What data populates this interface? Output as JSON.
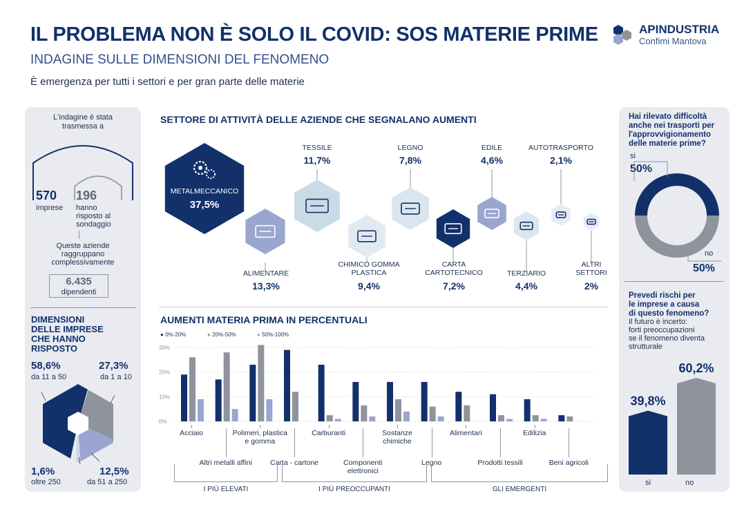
{
  "header": {
    "title": "IL PROBLEMA NON È SOLO IL COVID: SOS MATERIE PRIME",
    "subtitle": "INDAGINE SULLE DIMENSIONI DEL FENOMENO",
    "tagline": "È emergenza per tutti i settori e per gran parte delle materie",
    "logo_name": "APINDUSTRIA",
    "logo_sub": "Confimi Mantova"
  },
  "colors": {
    "navy": "#12316b",
    "grey": "#8f949c",
    "light": "#9aa6cf",
    "pale": "#c9dbe6",
    "panel": "#e9ebf1"
  },
  "left_panel": {
    "intro": [
      "L'indagine è stata",
      "trasmessa a"
    ],
    "sent_number": "570",
    "sent_label": "imprese",
    "resp_number": "196",
    "resp_label": [
      "hanno",
      "risposto al",
      "sondaggio"
    ],
    "group_text": [
      "Queste aziende",
      "raggruppano",
      "complessivamente"
    ],
    "employees_number": "6.435",
    "employees_label": "dipendenti",
    "size_title": [
      "DIMENSIONI",
      "DELLE IMPRESE",
      "CHE HANNO",
      "RISPOSTO"
    ],
    "sizes": [
      {
        "value": "58,6%",
        "label": "da 11 a 50"
      },
      {
        "value": "27,3%",
        "label": "da 1 a 10"
      },
      {
        "value": "12,5%",
        "label": "da 51 a 250"
      },
      {
        "value": "1,6%",
        "label": "oltre 250"
      }
    ]
  },
  "sectors": {
    "title": "SETTORE DI ATTIVITÀ DELLE AZIENDE CHE SEGNALANO AUMENTI",
    "items": [
      {
        "label": "METALMECCANICO",
        "value": "37,5%",
        "icon": "gears-icon"
      },
      {
        "label": "ALIMENTARE",
        "value": "13,3%",
        "icon": "food-icon"
      },
      {
        "label": "TESSILE",
        "value": "11,7%",
        "icon": "fabric-icon"
      },
      {
        "label": "CHIMICO GOMMA",
        "label2": "PLASTICA",
        "value": "9,4%",
        "icon": "chemical-icon"
      },
      {
        "label": "LEGNO",
        "value": "7,8%",
        "icon": "log-icon"
      },
      {
        "label": "CARTA",
        "label2": "CARTOTECNICO",
        "value": "7,2%",
        "icon": "paper-icon"
      },
      {
        "label": "EDILE",
        "value": "4,6%",
        "icon": "trowel-icon"
      },
      {
        "label": "TERZIARIO",
        "value": "4,4%",
        "icon": "laptop-icon"
      },
      {
        "label": "AUTOTRASPORTO",
        "value": "2,1%",
        "icon": "truck-icon"
      },
      {
        "label": "ALTRI",
        "label2": "SETTORI",
        "value": "2%",
        "icon": "worker-icon"
      }
    ]
  },
  "chart_data": [
    {
      "type": "bar",
      "title": "AUMENTI MATERIA PRIMA IN PERCENTUALI",
      "categories": [
        "Acciaio",
        "Altri metalli affini",
        "Polimeri, plastica e gomma",
        "Carta - cartone",
        "Carburanti",
        "Componenti elettronici",
        "Sostanze chimiche",
        "Legno",
        "Alimentari",
        "Prodotti tessili",
        "Edilizia",
        "Beni agricoli"
      ],
      "series": [
        {
          "name": "0%-20%",
          "values": [
            19,
            17,
            23,
            29,
            23,
            16,
            16,
            16,
            12,
            11,
            9,
            2.5
          ]
        },
        {
          "name": "20%-50%",
          "values": [
            26,
            28,
            31,
            12,
            2.5,
            6.5,
            9,
            6,
            6.5,
            2.5,
            2.5,
            2
          ]
        },
        {
          "name": "50%-100%",
          "values": [
            9,
            5,
            9,
            0,
            1,
            2,
            4,
            2,
            0,
            1,
            1,
            0
          ]
        }
      ],
      "yticks": [
        "0%",
        "10%",
        "20%",
        "30%"
      ],
      "ylim": [
        0,
        30
      ],
      "groups": [
        {
          "label": "I PIÙ ELEVATI"
        },
        {
          "label": "I PIÙ PREOCCUPANTI"
        },
        {
          "label": "GLI EMERGENTI"
        }
      ],
      "legend": "top-left"
    },
    {
      "type": "pie",
      "title": "Hai rilevato difficoltà anche nei trasporti per l'approvvigionamento delle materie prime?",
      "labels": [
        "si",
        "no"
      ],
      "values": [
        50,
        50
      ],
      "value_labels": [
        "50%",
        "50%"
      ]
    },
    {
      "type": "bar",
      "title": "Prevedi rischi per le imprese a causa di questo fenomeno?",
      "categories": [
        "si",
        "no"
      ],
      "values": [
        39.8,
        60.2
      ],
      "value_labels": [
        "39,8%",
        "60,2%"
      ]
    }
  ],
  "right_panel": {
    "q1": [
      "Hai rilevato difficoltà",
      "anche nei trasporti per",
      "l'approvvigionamento",
      "delle materie prime?"
    ],
    "q2": [
      "Prevedi rischi per",
      "le imprese a causa",
      "di questo fenomeno?"
    ],
    "q2_text": [
      "Il futuro è incerto:",
      "forti preoccupazioni",
      "se il fenomeno diventa",
      "strutturale"
    ]
  }
}
